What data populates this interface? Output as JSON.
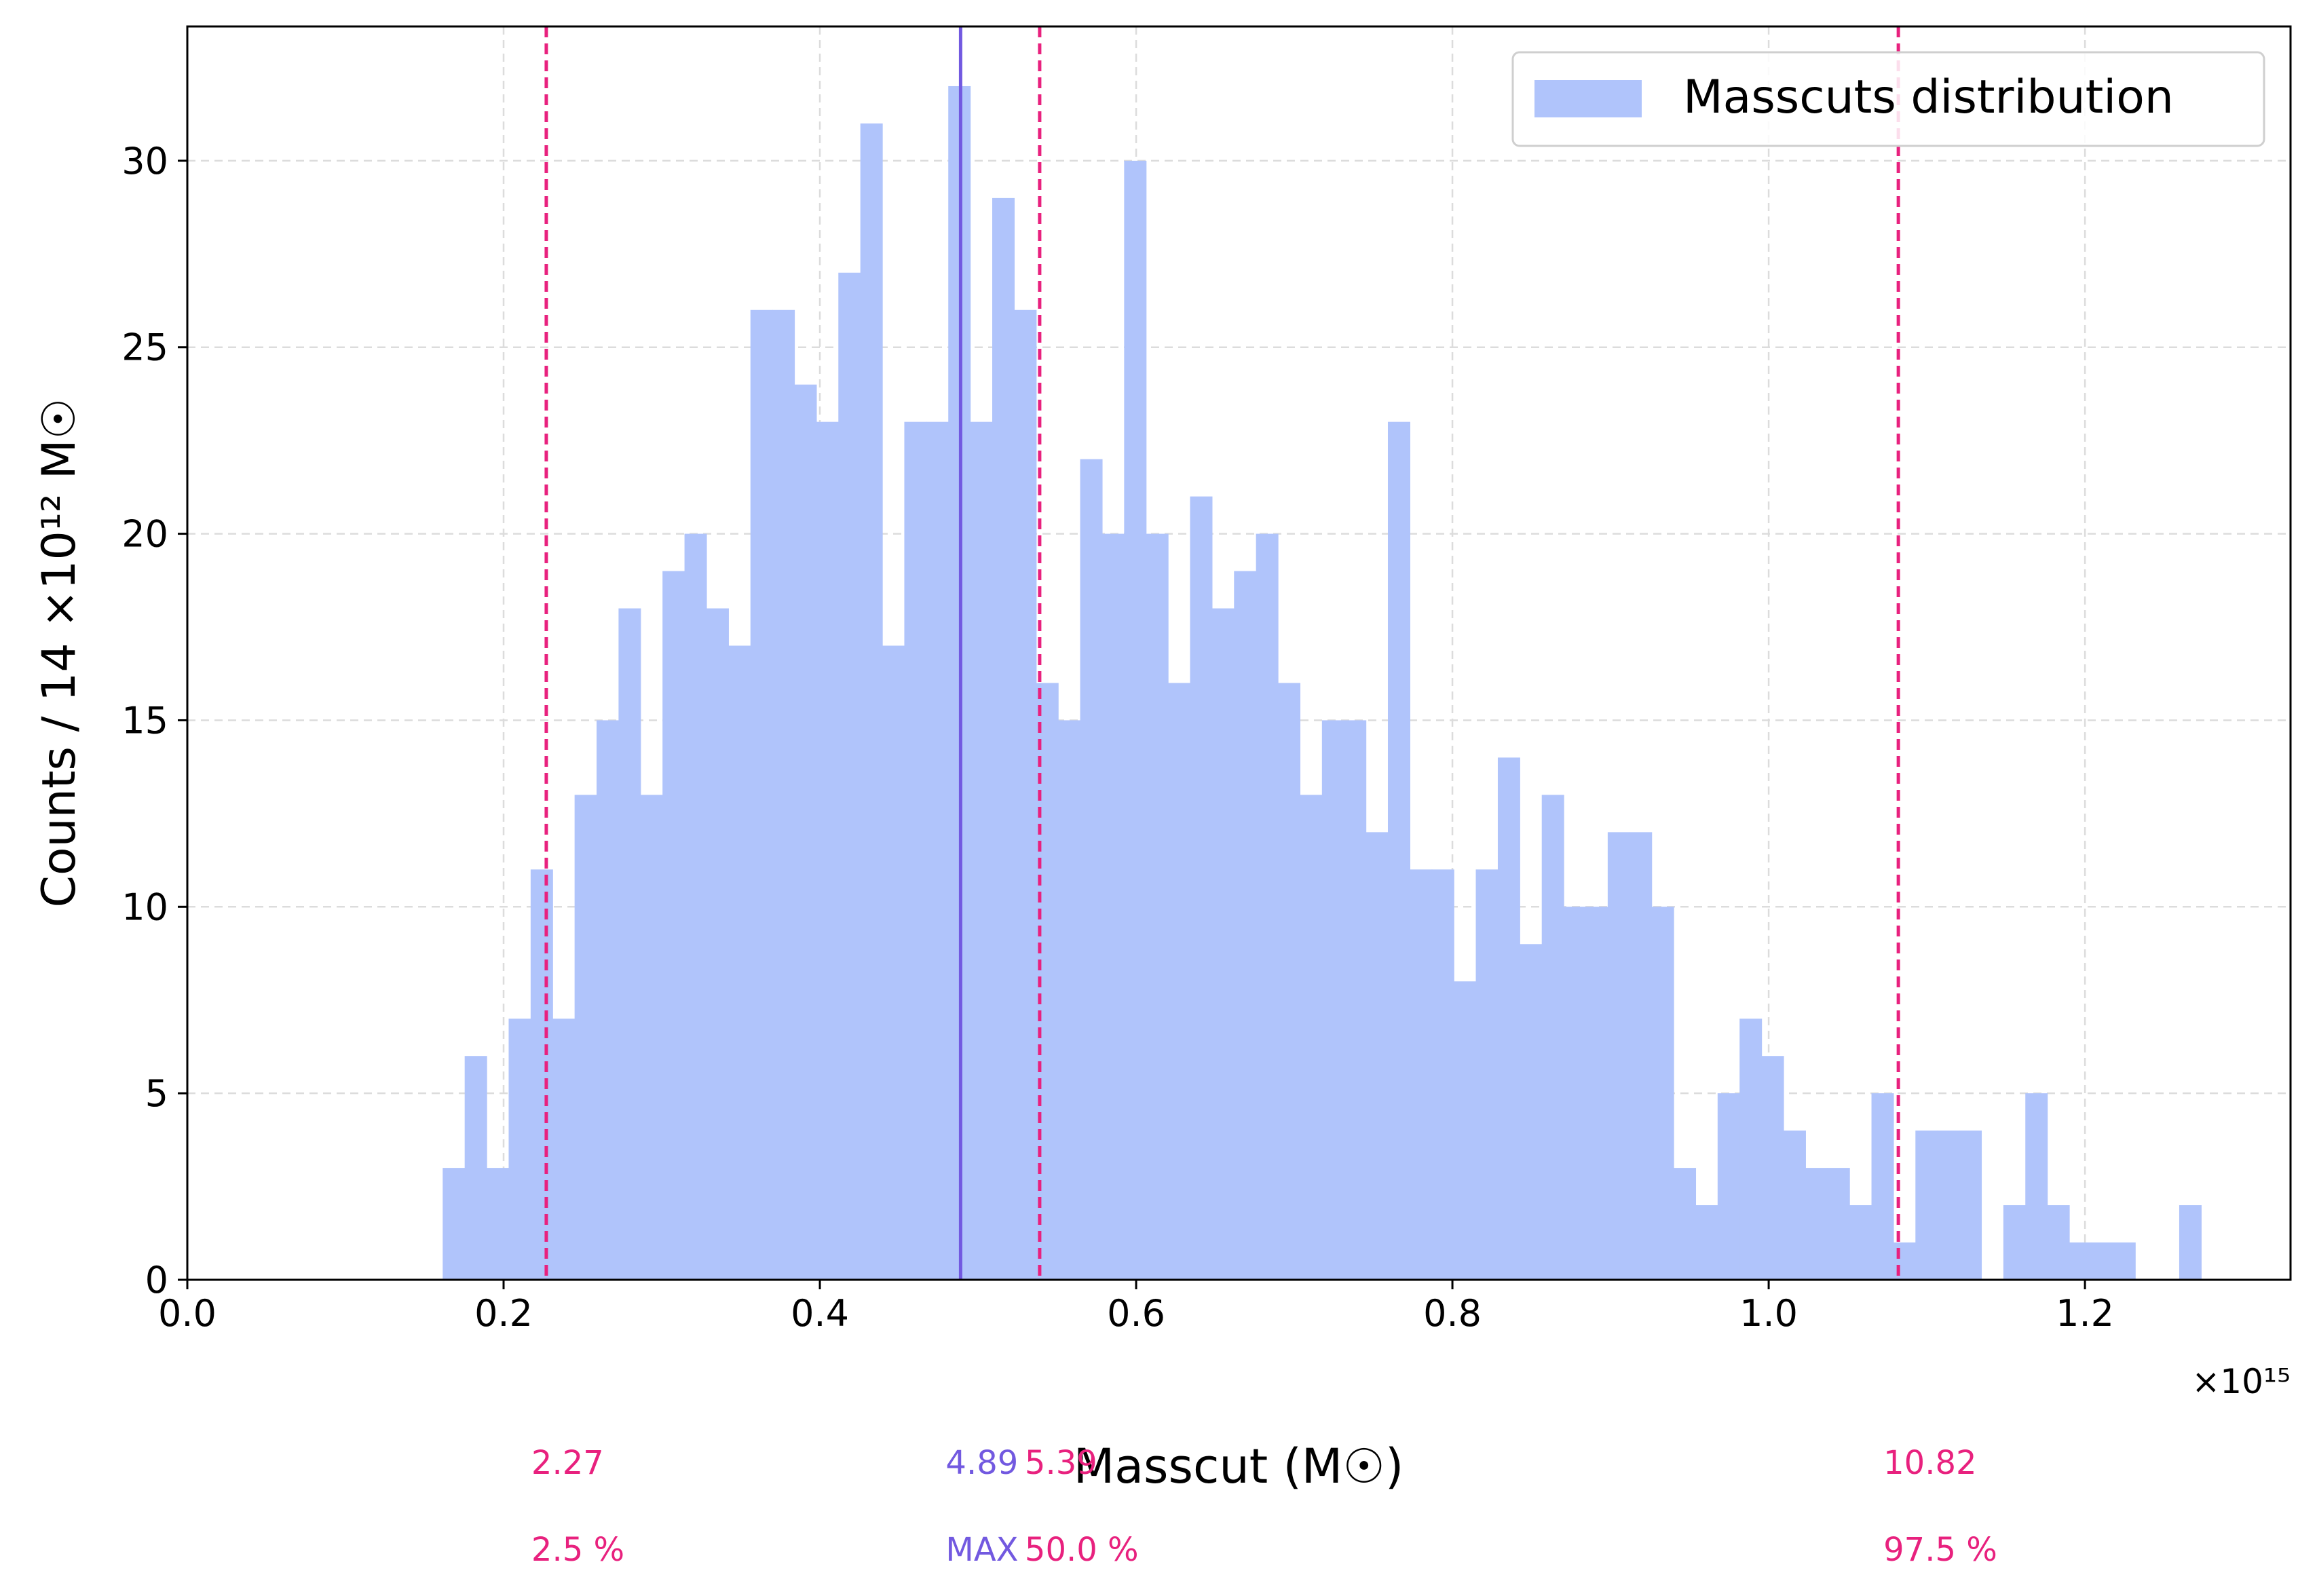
{
  "chart_data": {
    "type": "bar",
    "subtype": "histogram",
    "xlabel": "Masscut (M☉)",
    "ylabel": "Counts  /  14 ×10¹² M☉",
    "x_multiplier": "×10¹⁵",
    "xlim": [
      0.0,
      1.33
    ],
    "ylim": [
      0,
      33.6
    ],
    "xticks": [
      0.0,
      0.2,
      0.4,
      0.6,
      0.8,
      1.0,
      1.2
    ],
    "xtick_labels": [
      "0.0",
      "0.2",
      "0.4",
      "0.6",
      "0.8",
      "1.0",
      "1.2"
    ],
    "yticks": [
      0,
      5,
      10,
      15,
      20,
      25,
      30
    ],
    "ytick_labels": [
      "0",
      "5",
      "10",
      "15",
      "20",
      "25",
      "30"
    ],
    "grid": true,
    "legend_position": "top-right",
    "series": [
      {
        "name": "Masscuts distribution",
        "color": "#b0c4fb",
        "bin_start": 0.1615,
        "bin_width": 0.0139,
        "counts": [
          3,
          6,
          3,
          7,
          11,
          7,
          13,
          15,
          18,
          13,
          19,
          20,
          18,
          17,
          26,
          26,
          24,
          23,
          27,
          31,
          17,
          23,
          23,
          32,
          23,
          29,
          26,
          16,
          15,
          22,
          20,
          30,
          20,
          16,
          21,
          18,
          19,
          20,
          16,
          13,
          15,
          15,
          12,
          23,
          11,
          11,
          8,
          11,
          14,
          9,
          13,
          10,
          10,
          12,
          12,
          10,
          3,
          2,
          5,
          7,
          6,
          4,
          3,
          3,
          2,
          5,
          1,
          4,
          4,
          4,
          0,
          2,
          5,
          2,
          1,
          1,
          1,
          0,
          0,
          2
        ]
      }
    ],
    "markers": [
      {
        "x": 0.227,
        "style": "dashed",
        "color": "#e8217e",
        "value_label": "2.27",
        "label": "2.5 %"
      },
      {
        "x": 0.489,
        "style": "solid",
        "color": "#7259e0",
        "value_label": "4.89",
        "label": "MAX"
      },
      {
        "x": 0.539,
        "style": "dashed",
        "color": "#e8217e",
        "value_label": "5.39",
        "label": "50.0 %"
      },
      {
        "x": 1.082,
        "style": "dashed",
        "color": "#e8217e",
        "value_label": "10.82",
        "label": "97.5 %"
      }
    ]
  }
}
